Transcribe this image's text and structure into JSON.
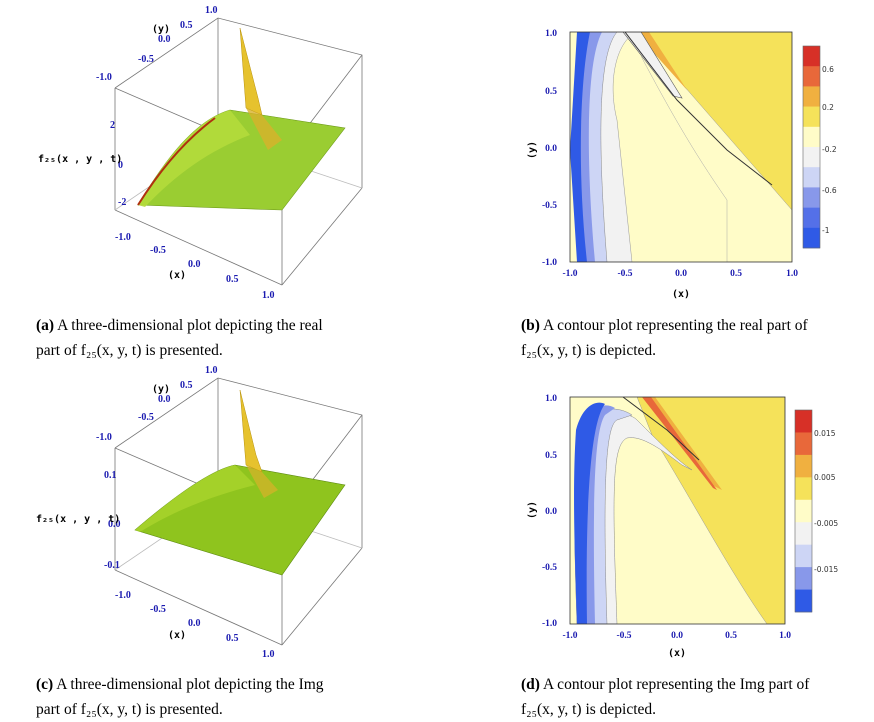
{
  "chart_data": [
    {
      "id": "a",
      "type": "surface3d",
      "zlabel": "f₂₅(x , y , t)",
      "xlabel": "(x)",
      "ylabel": "(y)",
      "x_ticks": [
        "-1.0",
        "-0.5",
        "0.0",
        "0.5",
        "1.0"
      ],
      "y_ticks": [
        "-1.0",
        "-0.5",
        "0.0",
        "0.5",
        "1.0"
      ],
      "z_ticks": [
        "-2",
        "0",
        "2"
      ],
      "colors": {
        "surface": "#9acd32",
        "spike": "#e6c22e",
        "edge": "#b03010"
      }
    },
    {
      "id": "b",
      "type": "contour",
      "xlabel": "(x)",
      "ylabel": "(y)",
      "x_ticks": [
        "-1.0",
        "-0.5",
        "0.0",
        "0.5",
        "1.0"
      ],
      "y_ticks": [
        "-1.0",
        "-0.5",
        "0.0",
        "0.5",
        "1.0"
      ],
      "xlim": [
        -1,
        1
      ],
      "ylim": [
        -1,
        1
      ],
      "colorbar": {
        "labels": [
          "0.6",
          "0.2",
          "-0.2",
          "-0.6",
          "-1"
        ],
        "colors": [
          "#d73027",
          "#e8683a",
          "#f0b040",
          "#f5e25a",
          "#fffcc8",
          "#f2f2f2",
          "#cdd5f5",
          "#8898ea",
          "#5470e8",
          "#2f5ae6"
        ]
      }
    },
    {
      "id": "c",
      "type": "surface3d",
      "zlabel": "f₂₅(x , y , t)",
      "xlabel": "(x)",
      "ylabel": "(y)",
      "x_ticks": [
        "-1.0",
        "-0.5",
        "0.0",
        "0.5",
        "1.0"
      ],
      "y_ticks": [
        "-1.0",
        "-0.5",
        "0.0",
        "0.5",
        "1.0"
      ],
      "z_ticks": [
        "0.1",
        "0.0",
        "-0.1"
      ],
      "colors": {
        "surface": "#8fc41e",
        "spike": "#e6c22e",
        "edge": "#3a5a10"
      }
    },
    {
      "id": "d",
      "type": "contour",
      "xlabel": "(x)",
      "ylabel": "(y)",
      "x_ticks": [
        "-1.0",
        "-0.5",
        "0.0",
        "0.5",
        "1.0"
      ],
      "y_ticks": [
        "-1.0",
        "-0.5",
        "0.0",
        "0.5",
        "1.0"
      ],
      "xlim": [
        -1,
        1
      ],
      "ylim": [
        -1,
        1
      ],
      "colorbar": {
        "labels": [
          "0.015",
          "0.005",
          "-0.005",
          "-0.015"
        ],
        "colors": [
          "#d73027",
          "#e8683a",
          "#f0b040",
          "#f5e25a",
          "#fffcc8",
          "#f2f2f2",
          "#cdd5f5",
          "#8898ea",
          "#2f5ae6"
        ]
      }
    }
  ],
  "captions": {
    "a": {
      "tag": "(a)",
      "line1": " A three-dimensional plot depicting the real",
      "line2": "part of f₂₅(x, y, t) is presented."
    },
    "b": {
      "tag": "(b)",
      "line1": " A contour plot representing the real part of",
      "line2": "f₂₅(x, y, t) is depicted."
    },
    "c": {
      "tag": "(c)",
      "line1": " A three-dimensional plot depicting the Img",
      "line2": "part of f₂₅(x, y, t) is presented."
    },
    "d": {
      "tag": "(d)",
      "line1": " A contour plot representing the Img part of",
      "line2": "f₂₅(x, y, t) is depicted."
    }
  }
}
